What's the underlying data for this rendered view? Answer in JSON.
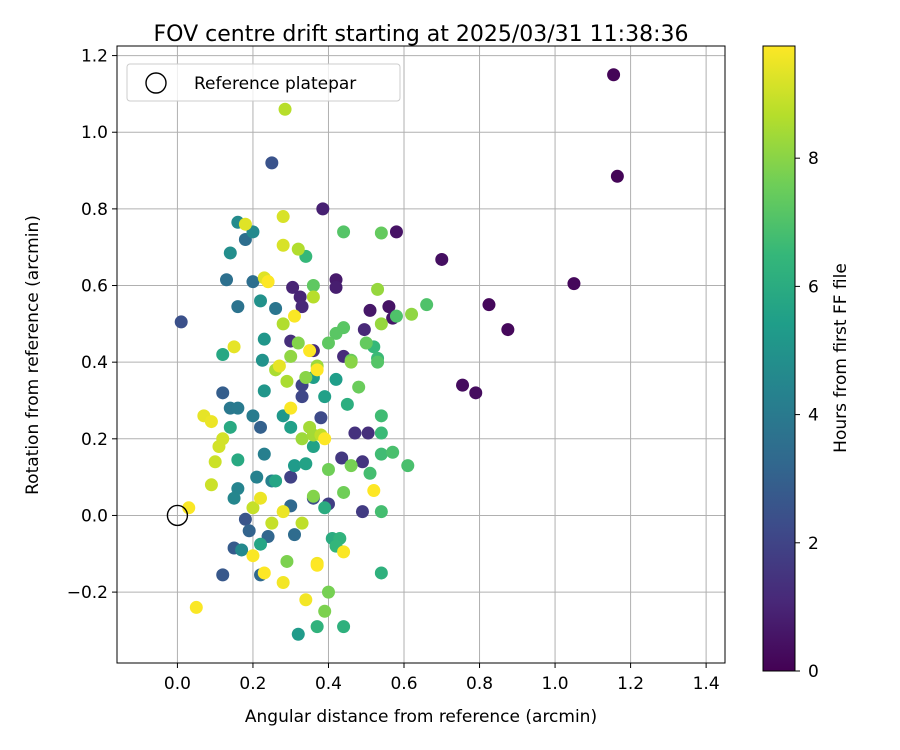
{
  "chart_data": {
    "type": "scatter",
    "title": "FOV centre drift starting at 2025/03/31 11:38:36",
    "xlabel": "Angular distance from reference (arcmin)",
    "ylabel": "Rotation from reference (arcmin)",
    "xlim": [
      -0.16,
      1.45
    ],
    "ylim": [
      -0.385,
      1.225
    ],
    "xticks": [
      0.0,
      0.2,
      0.4,
      0.6,
      0.8,
      1.0,
      1.2,
      1.4
    ],
    "xtick_labels": [
      "0.0",
      "0.2",
      "0.4",
      "0.6",
      "0.8",
      "1.0",
      "1.2",
      "1.4"
    ],
    "yticks": [
      -0.2,
      0.0,
      0.2,
      0.4,
      0.6,
      0.8,
      1.0,
      1.2
    ],
    "ytick_labels": [
      "−0.2",
      "0.0",
      "0.2",
      "0.4",
      "0.6",
      "0.8",
      "1.0",
      "1.2"
    ],
    "grid": true,
    "legend": {
      "position": "top-left",
      "entries": [
        "Reference platepar"
      ]
    },
    "reference_point": {
      "x": 0.0,
      "y": 0.0
    },
    "colorbar": {
      "label": "Hours from first FF file",
      "colormap": "viridis",
      "range": [
        0,
        9.75
      ],
      "ticks": [
        0,
        2,
        4,
        6,
        8
      ],
      "tick_labels": [
        "0",
        "2",
        "4",
        "6",
        "8"
      ],
      "colors": [
        "#440154",
        "#482878",
        "#3e4989",
        "#31688e",
        "#26828e",
        "#1f9e89",
        "#35b779",
        "#6ece58",
        "#b5de2b",
        "#fde725"
      ]
    },
    "points": [
      {
        "x": 1.155,
        "y": 1.15,
        "h": 0.1
      },
      {
        "x": 1.165,
        "y": 0.885,
        "h": 0.1
      },
      {
        "x": 1.05,
        "y": 0.605,
        "h": 0.2
      },
      {
        "x": 0.875,
        "y": 0.485,
        "h": 0.2
      },
      {
        "x": 0.825,
        "y": 0.55,
        "h": 0.2
      },
      {
        "x": 0.79,
        "y": 0.32,
        "h": 0.3
      },
      {
        "x": 0.755,
        "y": 0.34,
        "h": 0.3
      },
      {
        "x": 0.7,
        "y": 0.668,
        "h": 0.4
      },
      {
        "x": 0.58,
        "y": 0.74,
        "h": 0.5
      },
      {
        "x": 0.56,
        "y": 0.545,
        "h": 0.5
      },
      {
        "x": 0.57,
        "y": 0.515,
        "h": 0.6
      },
      {
        "x": 0.51,
        "y": 0.535,
        "h": 0.6
      },
      {
        "x": 0.42,
        "y": 0.615,
        "h": 0.7
      },
      {
        "x": 0.42,
        "y": 0.595,
        "h": 0.8
      },
      {
        "x": 0.385,
        "y": 0.8,
        "h": 0.9
      },
      {
        "x": 0.305,
        "y": 0.595,
        "h": 1.0
      },
      {
        "x": 0.325,
        "y": 0.57,
        "h": 1.0
      },
      {
        "x": 0.33,
        "y": 0.545,
        "h": 1.1
      },
      {
        "x": 0.495,
        "y": 0.485,
        "h": 1.1
      },
      {
        "x": 0.44,
        "y": 0.415,
        "h": 1.2
      },
      {
        "x": 0.36,
        "y": 0.43,
        "h": 1.2
      },
      {
        "x": 0.3,
        "y": 0.455,
        "h": 1.3
      },
      {
        "x": 0.505,
        "y": 0.215,
        "h": 1.3
      },
      {
        "x": 0.47,
        "y": 0.215,
        "h": 1.4
      },
      {
        "x": 0.49,
        "y": 0.14,
        "h": 1.5
      },
      {
        "x": 0.435,
        "y": 0.15,
        "h": 1.6
      },
      {
        "x": 0.49,
        "y": 0.01,
        "h": 1.7
      },
      {
        "x": 0.4,
        "y": 0.03,
        "h": 1.8
      },
      {
        "x": 0.3,
        "y": 0.1,
        "h": 1.9
      },
      {
        "x": 0.33,
        "y": 0.34,
        "h": 2.0
      },
      {
        "x": 0.33,
        "y": 0.31,
        "h": 2.1
      },
      {
        "x": 0.38,
        "y": 0.255,
        "h": 2.2
      },
      {
        "x": 0.36,
        "y": 0.045,
        "h": 2.3
      },
      {
        "x": 0.01,
        "y": 0.505,
        "h": 2.4
      },
      {
        "x": 0.25,
        "y": 0.92,
        "h": 2.5
      },
      {
        "x": 0.18,
        "y": -0.01,
        "h": 2.6
      },
      {
        "x": 0.12,
        "y": -0.155,
        "h": 2.7
      },
      {
        "x": 0.15,
        "y": -0.085,
        "h": 2.8
      },
      {
        "x": 0.12,
        "y": 0.32,
        "h": 2.9
      },
      {
        "x": 0.22,
        "y": 0.23,
        "h": 3.0
      },
      {
        "x": 0.19,
        "y": -0.04,
        "h": 3.1
      },
      {
        "x": 0.24,
        "y": -0.055,
        "h": 3.2
      },
      {
        "x": 0.22,
        "y": -0.155,
        "h": 3.3
      },
      {
        "x": 0.3,
        "y": 0.025,
        "h": 3.3
      },
      {
        "x": 0.31,
        "y": -0.05,
        "h": 3.4
      },
      {
        "x": 0.2,
        "y": 0.61,
        "h": 3.5
      },
      {
        "x": 0.18,
        "y": 0.72,
        "h": 3.5
      },
      {
        "x": 0.13,
        "y": 0.615,
        "h": 3.6
      },
      {
        "x": 0.16,
        "y": 0.545,
        "h": 3.7
      },
      {
        "x": 0.26,
        "y": 0.54,
        "h": 3.8
      },
      {
        "x": 0.14,
        "y": 0.28,
        "h": 3.9
      },
      {
        "x": 0.16,
        "y": 0.28,
        "h": 4.0
      },
      {
        "x": 0.2,
        "y": 0.26,
        "h": 4.1
      },
      {
        "x": 0.23,
        "y": 0.16,
        "h": 4.2
      },
      {
        "x": 0.21,
        "y": 0.1,
        "h": 4.3
      },
      {
        "x": 0.25,
        "y": 0.09,
        "h": 4.3
      },
      {
        "x": 0.16,
        "y": 0.07,
        "h": 4.4
      },
      {
        "x": 0.15,
        "y": 0.045,
        "h": 4.5
      },
      {
        "x": 0.17,
        "y": -0.09,
        "h": 4.6
      },
      {
        "x": 0.2,
        "y": 0.74,
        "h": 4.6
      },
      {
        "x": 0.16,
        "y": 0.765,
        "h": 4.7
      },
      {
        "x": 0.14,
        "y": 0.685,
        "h": 4.8
      },
      {
        "x": 0.22,
        "y": 0.56,
        "h": 4.9
      },
      {
        "x": 0.225,
        "y": 0.405,
        "h": 5.0
      },
      {
        "x": 0.23,
        "y": 0.46,
        "h": 5.1
      },
      {
        "x": 0.23,
        "y": 0.325,
        "h": 5.1
      },
      {
        "x": 0.28,
        "y": 0.26,
        "h": 5.2
      },
      {
        "x": 0.31,
        "y": 0.13,
        "h": 5.3
      },
      {
        "x": 0.32,
        "y": -0.31,
        "h": 5.3
      },
      {
        "x": 0.36,
        "y": 0.36,
        "h": 5.4
      },
      {
        "x": 0.42,
        "y": 0.355,
        "h": 5.4
      },
      {
        "x": 0.39,
        "y": 0.31,
        "h": 5.5
      },
      {
        "x": 0.3,
        "y": 0.23,
        "h": 5.5
      },
      {
        "x": 0.34,
        "y": 0.135,
        "h": 5.6
      },
      {
        "x": 0.36,
        "y": 0.18,
        "h": 5.6
      },
      {
        "x": 0.22,
        "y": -0.075,
        "h": 5.7
      },
      {
        "x": 0.26,
        "y": 0.09,
        "h": 5.7
      },
      {
        "x": 0.12,
        "y": 0.42,
        "h": 5.8
      },
      {
        "x": 0.14,
        "y": 0.23,
        "h": 5.9
      },
      {
        "x": 0.16,
        "y": 0.145,
        "h": 5.9
      },
      {
        "x": 0.39,
        "y": 0.02,
        "h": 6.0
      },
      {
        "x": 0.41,
        "y": -0.06,
        "h": 6.0
      },
      {
        "x": 0.45,
        "y": 0.29,
        "h": 6.1
      },
      {
        "x": 0.54,
        "y": -0.15,
        "h": 6.2
      },
      {
        "x": 0.44,
        "y": -0.29,
        "h": 6.2
      },
      {
        "x": 0.37,
        "y": -0.29,
        "h": 6.3
      },
      {
        "x": 0.43,
        "y": -0.06,
        "h": 6.3
      },
      {
        "x": 0.42,
        "y": -0.08,
        "h": 6.4
      },
      {
        "x": 0.34,
        "y": 0.676,
        "h": 6.5
      },
      {
        "x": 0.52,
        "y": 0.44,
        "h": 6.5
      },
      {
        "x": 0.53,
        "y": 0.41,
        "h": 6.6
      },
      {
        "x": 0.54,
        "y": 0.215,
        "h": 6.6
      },
      {
        "x": 0.54,
        "y": 0.26,
        "h": 6.7
      },
      {
        "x": 0.54,
        "y": 0.16,
        "h": 6.7
      },
      {
        "x": 0.54,
        "y": 0.01,
        "h": 6.8
      },
      {
        "x": 0.51,
        "y": 0.11,
        "h": 6.8
      },
      {
        "x": 0.61,
        "y": 0.13,
        "h": 6.9
      },
      {
        "x": 0.57,
        "y": 0.165,
        "h": 6.9
      },
      {
        "x": 0.58,
        "y": 0.52,
        "h": 7.0
      },
      {
        "x": 0.66,
        "y": 0.55,
        "h": 7.0
      },
      {
        "x": 0.44,
        "y": 0.74,
        "h": 7.1
      },
      {
        "x": 0.53,
        "y": 0.4,
        "h": 7.1
      },
      {
        "x": 0.44,
        "y": 0.49,
        "h": 7.2
      },
      {
        "x": 0.42,
        "y": 0.475,
        "h": 7.2
      },
      {
        "x": 0.4,
        "y": 0.45,
        "h": 7.3
      },
      {
        "x": 0.36,
        "y": 0.6,
        "h": 7.3
      },
      {
        "x": 0.54,
        "y": 0.737,
        "h": 7.4
      },
      {
        "x": 0.5,
        "y": 0.45,
        "h": 7.4
      },
      {
        "x": 0.46,
        "y": 0.405,
        "h": 7.5
      },
      {
        "x": 0.48,
        "y": 0.335,
        "h": 7.5
      },
      {
        "x": 0.4,
        "y": 0.12,
        "h": 7.6
      },
      {
        "x": 0.44,
        "y": 0.06,
        "h": 7.6
      },
      {
        "x": 0.46,
        "y": 0.13,
        "h": 7.7
      },
      {
        "x": 0.4,
        "y": -0.2,
        "h": 7.7
      },
      {
        "x": 0.39,
        "y": -0.25,
        "h": 7.8
      },
      {
        "x": 0.29,
        "y": -0.12,
        "h": 7.8
      },
      {
        "x": 0.36,
        "y": 0.05,
        "h": 7.9
      },
      {
        "x": 0.32,
        "y": 0.45,
        "h": 7.9
      },
      {
        "x": 0.34,
        "y": 0.36,
        "h": 8.0
      },
      {
        "x": 0.46,
        "y": 0.4,
        "h": 8.0
      },
      {
        "x": 0.3,
        "y": 0.415,
        "h": 8.1
      },
      {
        "x": 0.62,
        "y": 0.525,
        "h": 8.1
      },
      {
        "x": 0.53,
        "y": 0.59,
        "h": 8.2
      },
      {
        "x": 0.54,
        "y": 0.5,
        "h": 8.2
      },
      {
        "x": 0.33,
        "y": 0.2,
        "h": 8.3
      },
      {
        "x": 0.37,
        "y": 0.39,
        "h": 8.3
      },
      {
        "x": 0.35,
        "y": 0.23,
        "h": 8.4
      },
      {
        "x": 0.36,
        "y": 0.21,
        "h": 8.4
      },
      {
        "x": 0.26,
        "y": 0.38,
        "h": 8.5
      },
      {
        "x": 0.29,
        "y": 0.35,
        "h": 8.5
      },
      {
        "x": 0.28,
        "y": 0.5,
        "h": 8.6
      },
      {
        "x": 0.32,
        "y": 0.695,
        "h": 8.6
      },
      {
        "x": 0.285,
        "y": 1.06,
        "h": 8.7
      },
      {
        "x": 0.36,
        "y": 0.57,
        "h": 8.7
      },
      {
        "x": 0.33,
        "y": -0.02,
        "h": 8.8
      },
      {
        "x": 0.38,
        "y": 0.21,
        "h": 8.8
      },
      {
        "x": 0.2,
        "y": 0.02,
        "h": 8.9
      },
      {
        "x": 0.25,
        "y": -0.02,
        "h": 8.9
      },
      {
        "x": 0.1,
        "y": 0.14,
        "h": 9.0
      },
      {
        "x": 0.09,
        "y": 0.08,
        "h": 9.0
      },
      {
        "x": 0.11,
        "y": 0.18,
        "h": 9.1
      },
      {
        "x": 0.12,
        "y": 0.2,
        "h": 9.1
      },
      {
        "x": 0.28,
        "y": 0.78,
        "h": 9.2
      },
      {
        "x": 0.28,
        "y": 0.705,
        "h": 9.2
      },
      {
        "x": 0.23,
        "y": 0.62,
        "h": 9.3
      },
      {
        "x": 0.24,
        "y": 0.61,
        "h": 9.3
      },
      {
        "x": 0.18,
        "y": 0.76,
        "h": 9.3
      },
      {
        "x": 0.15,
        "y": 0.44,
        "h": 9.4
      },
      {
        "x": 0.27,
        "y": 0.39,
        "h": 9.4
      },
      {
        "x": 0.07,
        "y": 0.26,
        "h": 9.4
      },
      {
        "x": 0.09,
        "y": 0.245,
        "h": 9.5
      },
      {
        "x": 0.22,
        "y": 0.045,
        "h": 9.5
      },
      {
        "x": 0.28,
        "y": 0.01,
        "h": 9.5
      },
      {
        "x": 0.28,
        "y": -0.175,
        "h": 9.6
      },
      {
        "x": 0.34,
        "y": -0.22,
        "h": 9.6
      },
      {
        "x": 0.37,
        "y": -0.125,
        "h": 9.6
      },
      {
        "x": 0.44,
        "y": -0.095,
        "h": 9.7
      },
      {
        "x": 0.05,
        "y": -0.24,
        "h": 9.7
      },
      {
        "x": 0.03,
        "y": 0.02,
        "h": 9.7
      },
      {
        "x": 0.2,
        "y": -0.105,
        "h": 9.7
      },
      {
        "x": 0.35,
        "y": 0.43,
        "h": 9.75
      },
      {
        "x": 0.52,
        "y": 0.065,
        "h": 9.75
      },
      {
        "x": 0.39,
        "y": 0.2,
        "h": 9.75
      },
      {
        "x": 0.37,
        "y": 0.38,
        "h": 9.75
      },
      {
        "x": 0.3,
        "y": 0.28,
        "h": 9.7
      },
      {
        "x": 0.31,
        "y": 0.52,
        "h": 9.7
      },
      {
        "x": 0.24,
        "y": 0.61,
        "h": 9.75
      },
      {
        "x": 0.23,
        "y": -0.15,
        "h": 9.75
      },
      {
        "x": 0.37,
        "y": -0.13,
        "h": 9.75
      }
    ]
  }
}
